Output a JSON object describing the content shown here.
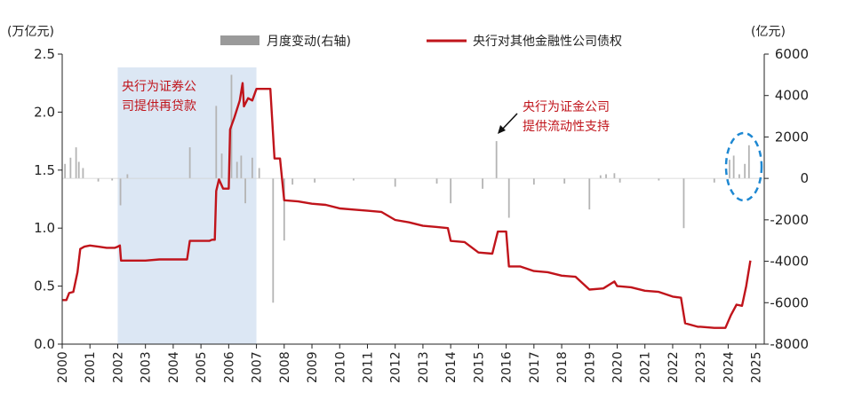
{
  "chart_data": {
    "type": "line",
    "left_unit": "(万亿元)",
    "right_unit": "(亿元)",
    "x_ticks": [
      "2000",
      "2001",
      "2002",
      "2003",
      "2004",
      "2005",
      "2006",
      "2007",
      "2008",
      "2009",
      "2010",
      "2011",
      "2012",
      "2013",
      "2014",
      "2015",
      "2016",
      "2017",
      "2018",
      "2019",
      "2020",
      "2021",
      "2022",
      "2023",
      "2024",
      "2025"
    ],
    "y_left": {
      "min": 0,
      "max": 2.5,
      "ticks": [
        "0.0",
        "0.5",
        "1.0",
        "1.5",
        "2.0",
        "2.5"
      ]
    },
    "y_right": {
      "min": -8000,
      "max": 6000,
      "ticks": [
        "-8000",
        "-6000",
        "-4000",
        "-2000",
        "0",
        "2000",
        "4000",
        "6000"
      ]
    },
    "legend": {
      "bar_label": "月度变动(右轴)",
      "line_label": "央行对其他金融性公司债权",
      "position": "top"
    },
    "colors": {
      "line": "#c0141b",
      "bar": "#b4b4b4",
      "shade": "#dce7f4",
      "highlight": "#1e88d2"
    },
    "shaded_period": {
      "from": 2002.0,
      "to": 2007.0
    },
    "annotations": [
      {
        "lines": [
          "央行为证券公",
          "司提供再贷款"
        ]
      },
      {
        "lines": [
          "央行为证金公司",
          "提供流动性支持"
        ],
        "arrow_target": [
          2015.6,
          1.78
        ]
      }
    ],
    "highlight_circle": {
      "x": 2024.5,
      "y": 1.5
    },
    "series": [
      {
        "name": "央行对其他金融性公司债权",
        "axis": "left",
        "points": [
          [
            2000.0,
            0.38
          ],
          [
            2000.15,
            0.38
          ],
          [
            2000.25,
            0.44
          ],
          [
            2000.4,
            0.45
          ],
          [
            2000.55,
            0.62
          ],
          [
            2000.65,
            0.82
          ],
          [
            2000.8,
            0.84
          ],
          [
            2001.0,
            0.85
          ],
          [
            2001.3,
            0.84
          ],
          [
            2001.6,
            0.83
          ],
          [
            2001.9,
            0.83
          ],
          [
            2002.0,
            0.84
          ],
          [
            2002.08,
            0.85
          ],
          [
            2002.12,
            0.72
          ],
          [
            2002.5,
            0.72
          ],
          [
            2003.0,
            0.72
          ],
          [
            2003.5,
            0.73
          ],
          [
            2004.0,
            0.73
          ],
          [
            2004.5,
            0.73
          ],
          [
            2004.6,
            0.89
          ],
          [
            2005.0,
            0.89
          ],
          [
            2005.3,
            0.89
          ],
          [
            2005.4,
            0.9
          ],
          [
            2005.5,
            0.9
          ],
          [
            2005.55,
            1.32
          ],
          [
            2005.65,
            1.42
          ],
          [
            2005.8,
            1.34
          ],
          [
            2006.0,
            1.34
          ],
          [
            2006.05,
            1.85
          ],
          [
            2006.2,
            1.95
          ],
          [
            2006.4,
            2.1
          ],
          [
            2006.5,
            2.25
          ],
          [
            2006.55,
            2.05
          ],
          [
            2006.7,
            2.12
          ],
          [
            2006.85,
            2.1
          ],
          [
            2007.0,
            2.2
          ],
          [
            2007.5,
            2.2
          ],
          [
            2007.65,
            1.6
          ],
          [
            2007.85,
            1.6
          ],
          [
            2008.0,
            1.24
          ],
          [
            2008.5,
            1.23
          ],
          [
            2009.0,
            1.21
          ],
          [
            2009.5,
            1.2
          ],
          [
            2010.0,
            1.17
          ],
          [
            2010.5,
            1.16
          ],
          [
            2011.0,
            1.15
          ],
          [
            2011.5,
            1.14
          ],
          [
            2012.0,
            1.07
          ],
          [
            2012.5,
            1.05
          ],
          [
            2013.0,
            1.02
          ],
          [
            2013.5,
            1.01
          ],
          [
            2013.9,
            1.0
          ],
          [
            2014.0,
            0.89
          ],
          [
            2014.5,
            0.88
          ],
          [
            2015.0,
            0.79
          ],
          [
            2015.5,
            0.78
          ],
          [
            2015.7,
            0.97
          ],
          [
            2016.0,
            0.97
          ],
          [
            2016.1,
            0.67
          ],
          [
            2016.5,
            0.67
          ],
          [
            2017.0,
            0.63
          ],
          [
            2017.5,
            0.62
          ],
          [
            2018.0,
            0.59
          ],
          [
            2018.5,
            0.58
          ],
          [
            2019.0,
            0.47
          ],
          [
            2019.5,
            0.48
          ],
          [
            2019.9,
            0.54
          ],
          [
            2020.0,
            0.5
          ],
          [
            2020.5,
            0.49
          ],
          [
            2021.0,
            0.46
          ],
          [
            2021.5,
            0.45
          ],
          [
            2022.0,
            0.41
          ],
          [
            2022.3,
            0.4
          ],
          [
            2022.45,
            0.18
          ],
          [
            2022.9,
            0.15
          ],
          [
            2023.0,
            0.15
          ],
          [
            2023.5,
            0.14
          ],
          [
            2023.9,
            0.14
          ],
          [
            2024.1,
            0.25
          ],
          [
            2024.3,
            0.34
          ],
          [
            2024.5,
            0.33
          ],
          [
            2024.65,
            0.5
          ],
          [
            2024.8,
            0.72
          ]
        ]
      },
      {
        "name": "月度变动(右轴)",
        "axis": "right",
        "type": "bar",
        "bars": [
          [
            2000.1,
            700
          ],
          [
            2000.3,
            1000
          ],
          [
            2000.5,
            1500
          ],
          [
            2000.6,
            800
          ],
          [
            2000.75,
            500
          ],
          [
            2001.3,
            -150
          ],
          [
            2001.8,
            -100
          ],
          [
            2002.1,
            -1300
          ],
          [
            2002.35,
            200
          ],
          [
            2004.6,
            1500
          ],
          [
            2005.55,
            3500
          ],
          [
            2005.75,
            1200
          ],
          [
            2006.1,
            5000
          ],
          [
            2006.3,
            800
          ],
          [
            2006.45,
            1100
          ],
          [
            2006.6,
            -1200
          ],
          [
            2006.85,
            1000
          ],
          [
            2007.1,
            500
          ],
          [
            2007.6,
            -6000
          ],
          [
            2008.0,
            -3000
          ],
          [
            2008.3,
            -300
          ],
          [
            2009.1,
            -200
          ],
          [
            2010.5,
            -100
          ],
          [
            2012.0,
            -400
          ],
          [
            2013.5,
            -250
          ],
          [
            2014.0,
            -1200
          ],
          [
            2015.15,
            -500
          ],
          [
            2015.65,
            1800
          ],
          [
            2016.1,
            -1900
          ],
          [
            2017.0,
            -300
          ],
          [
            2018.1,
            -250
          ],
          [
            2019.0,
            -1500
          ],
          [
            2019.4,
            150
          ],
          [
            2019.6,
            200
          ],
          [
            2019.9,
            250
          ],
          [
            2020.1,
            -200
          ],
          [
            2021.5,
            -100
          ],
          [
            2022.4,
            -2400
          ],
          [
            2023.5,
            -200
          ],
          [
            2024.05,
            900
          ],
          [
            2024.2,
            1100
          ],
          [
            2024.4,
            200
          ],
          [
            2024.6,
            700
          ],
          [
            2024.75,
            1600
          ]
        ]
      }
    ]
  }
}
